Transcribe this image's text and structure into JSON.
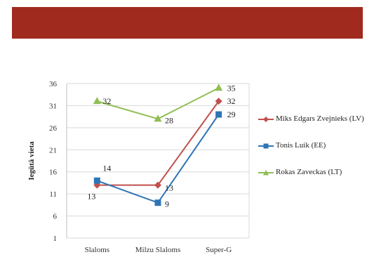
{
  "chart_data": {
    "type": "line",
    "ylabel": "Iegūtā vieta",
    "xlabel": "",
    "categories": [
      "Slaloms",
      "Milzu Slaloms",
      "Super-G"
    ],
    "yticks": [
      1,
      6,
      11,
      16,
      21,
      26,
      31,
      36
    ],
    "ylim": [
      1,
      36
    ],
    "grid": true,
    "legend": "right",
    "series": [
      {
        "name": "Miks Edgars Zvejnieks (LV)",
        "values": [
          13,
          13,
          32
        ],
        "labels": [
          "13",
          "13",
          "32"
        ],
        "color": "#c0504d",
        "marker": "diamond"
      },
      {
        "name": "Tonis Luik (EE)",
        "values": [
          14,
          9,
          29
        ],
        "labels": [
          "14",
          "9",
          "29"
        ],
        "color": "#2e75b6",
        "marker": "square"
      },
      {
        "name": "Rokas Zaveckas (LT)",
        "values": [
          32,
          28,
          35
        ],
        "labels": [
          "32",
          "28",
          "35"
        ],
        "color": "#8fbe54",
        "marker": "triangle"
      }
    ]
  }
}
